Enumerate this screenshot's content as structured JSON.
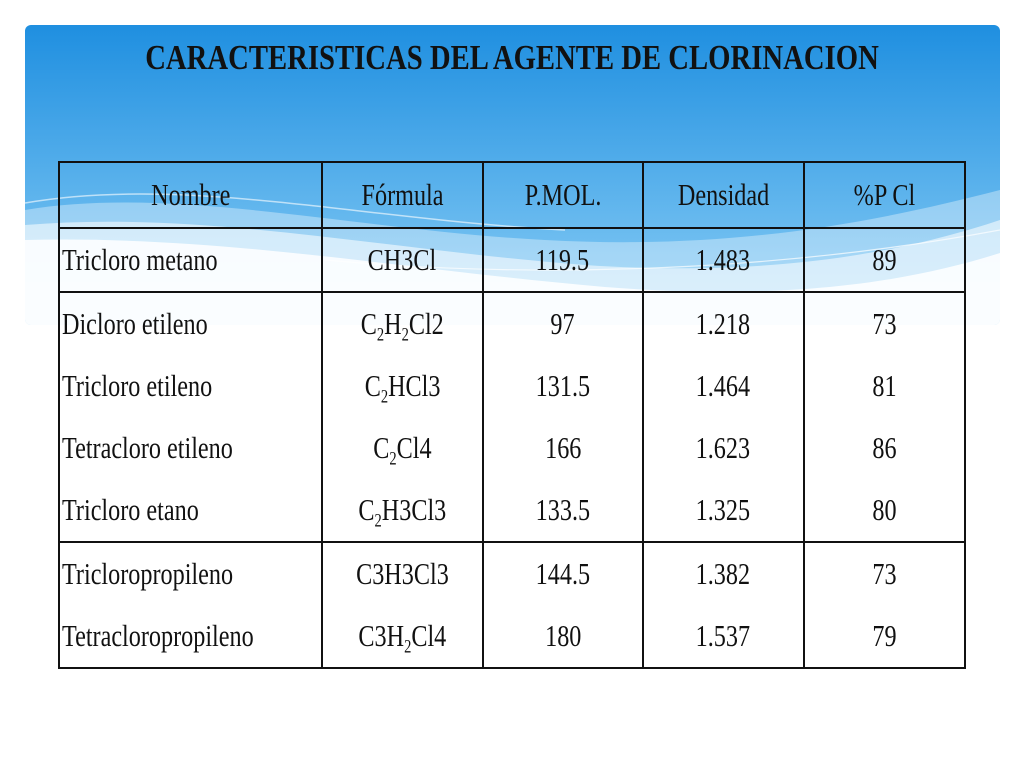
{
  "title": "CARACTERISTICAS DEL AGENTE DE CLORINACION",
  "colors": {
    "banner_top": "#1f8fe0",
    "banner_bottom": "#8ccff6",
    "text": "#111111",
    "background": "#ffffff"
  },
  "table": {
    "headers": [
      "Nombre",
      "Fórmula",
      "P.MOL.",
      "Densidad",
      "%P Cl"
    ],
    "rows": [
      {
        "name": "Tricloro metano",
        "formula": "CH3Cl",
        "formula_parts": [
          "CH3Cl"
        ],
        "pmol": "119.5",
        "densidad": "1.483",
        "pcl": "89"
      },
      {
        "name": "Dicloro etileno",
        "formula": "C2H2Cl2",
        "formula_parts": [
          "C",
          "2",
          "H",
          "2",
          "Cl2"
        ],
        "pmol": "97",
        "densidad": "1.218",
        "pcl": "73"
      },
      {
        "name": "Tricloro etileno",
        "formula": "C2HCl3",
        "formula_parts": [
          "C",
          "2",
          "HCl3"
        ],
        "pmol": "131.5",
        "densidad": "1.464",
        "pcl": "81"
      },
      {
        "name": "Tetracloro etileno",
        "formula": "C2Cl4",
        "formula_parts": [
          "C",
          "2",
          "Cl4"
        ],
        "pmol": "166",
        "densidad": "1.623",
        "pcl": "86"
      },
      {
        "name": "Tricloro etano",
        "formula": "C2H3Cl3",
        "formula_parts": [
          "C",
          "2",
          "H3Cl3"
        ],
        "pmol": "133.5",
        "densidad": "1.325",
        "pcl": "80"
      },
      {
        "name": "Tricloropropileno",
        "formula": "C3H3Cl3",
        "formula_parts": [
          "C3H3Cl3"
        ],
        "pmol": "144.5",
        "densidad": "1.382",
        "pcl": "73"
      },
      {
        "name": "Tetracloropropileno",
        "formula": "C3H2Cl4",
        "formula_parts": [
          "C3H",
          "2",
          "Cl4"
        ],
        "pmol": "180",
        "densidad": "1.537",
        "pcl": "79"
      }
    ]
  }
}
